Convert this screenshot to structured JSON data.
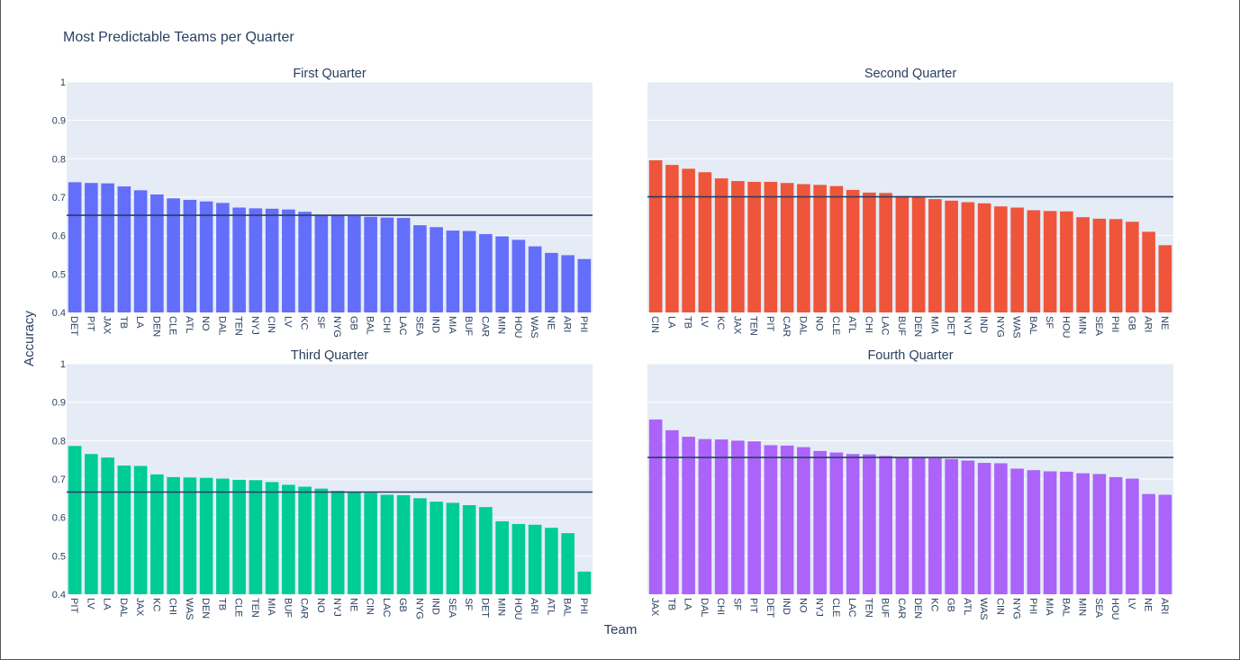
{
  "figure": {
    "title": "Most Predictable Teams per Quarter",
    "xlabel": "Team",
    "ylabel": "Accuracy"
  },
  "chart_data": [
    {
      "type": "bar",
      "title": "First Quarter",
      "color": "#636efa",
      "ylim": [
        0.4,
        1
      ],
      "yticks": [
        "0.4",
        "0.5",
        "0.6",
        "0.7",
        "0.8",
        "0.9",
        "1"
      ],
      "categories": [
        "DET",
        "PIT",
        "JAX",
        "TB",
        "LA",
        "DEN",
        "CLE",
        "ATL",
        "NO",
        "DAL",
        "TEN",
        "NYJ",
        "CIN",
        "LV",
        "KC",
        "SF",
        "NYG",
        "GB",
        "BAL",
        "CHI",
        "LAC",
        "SEA",
        "IND",
        "MIA",
        "BUF",
        "CAR",
        "MIN",
        "HOU",
        "WAS",
        "NE",
        "ARI",
        "PHI"
      ],
      "values": [
        0.739,
        0.737,
        0.736,
        0.728,
        0.718,
        0.707,
        0.697,
        0.693,
        0.689,
        0.685,
        0.673,
        0.671,
        0.67,
        0.668,
        0.662,
        0.653,
        0.652,
        0.651,
        0.649,
        0.647,
        0.646,
        0.627,
        0.622,
        0.613,
        0.612,
        0.604,
        0.598,
        0.589,
        0.572,
        0.555,
        0.549,
        0.539
      ],
      "reference_line": 0.653
    },
    {
      "type": "bar",
      "title": "Second Quarter",
      "color": "#ef553b",
      "ylim": [
        0.4,
        1
      ],
      "categories": [
        "CIN",
        "LA",
        "TB",
        "LV",
        "KC",
        "JAX",
        "TEN",
        "PIT",
        "CAR",
        "DAL",
        "NO",
        "CLE",
        "ATL",
        "CHI",
        "LAC",
        "BUF",
        "DEN",
        "MIA",
        "DET",
        "NYJ",
        "IND",
        "NYG",
        "WAS",
        "BAL",
        "SF",
        "HOU",
        "MIN",
        "SEA",
        "PHI",
        "GB",
        "ARI",
        "NE"
      ],
      "values": [
        0.796,
        0.784,
        0.774,
        0.765,
        0.749,
        0.742,
        0.74,
        0.74,
        0.737,
        0.734,
        0.732,
        0.729,
        0.719,
        0.712,
        0.711,
        0.703,
        0.701,
        0.695,
        0.691,
        0.687,
        0.684,
        0.676,
        0.673,
        0.666,
        0.664,
        0.663,
        0.648,
        0.644,
        0.643,
        0.636,
        0.61,
        0.575
      ],
      "reference_line": 0.701
    },
    {
      "type": "bar",
      "title": "Third Quarter",
      "color": "#00cc96",
      "ylim": [
        0.4,
        1
      ],
      "yticks": [
        "0.4",
        "0.5",
        "0.6",
        "0.7",
        "0.8",
        "0.9",
        "1"
      ],
      "categories": [
        "PIT",
        "LV",
        "LA",
        "DAL",
        "JAX",
        "KC",
        "CHI",
        "WAS",
        "DEN",
        "TB",
        "CLE",
        "TEN",
        "MIA",
        "BUF",
        "CAR",
        "NO",
        "NYJ",
        "NE",
        "CIN",
        "LAC",
        "GB",
        "NYG",
        "IND",
        "SEA",
        "SF",
        "DET",
        "MIN",
        "HOU",
        "ARI",
        "ATL",
        "BAL",
        "PHI"
      ],
      "values": [
        0.786,
        0.765,
        0.756,
        0.735,
        0.734,
        0.712,
        0.705,
        0.704,
        0.703,
        0.701,
        0.698,
        0.697,
        0.692,
        0.685,
        0.68,
        0.675,
        0.669,
        0.666,
        0.664,
        0.659,
        0.658,
        0.65,
        0.641,
        0.638,
        0.632,
        0.627,
        0.59,
        0.583,
        0.581,
        0.573,
        0.559,
        0.459
      ],
      "reference_line": 0.666
    },
    {
      "type": "bar",
      "title": "Fourth Quarter",
      "color": "#ab63fa",
      "ylim": [
        0.4,
        1
      ],
      "categories": [
        "JAX",
        "TB",
        "LA",
        "DAL",
        "CHI",
        "SF",
        "PIT",
        "DET",
        "IND",
        "NO",
        "NYJ",
        "CLE",
        "LAC",
        "TEN",
        "BUF",
        "CAR",
        "DEN",
        "KC",
        "GB",
        "ATL",
        "WAS",
        "CIN",
        "NYG",
        "PHI",
        "MIA",
        "BAL",
        "MIN",
        "SEA",
        "HOU",
        "LV",
        "NE",
        "ARI"
      ],
      "values": [
        0.855,
        0.827,
        0.81,
        0.804,
        0.803,
        0.8,
        0.798,
        0.788,
        0.787,
        0.783,
        0.773,
        0.769,
        0.765,
        0.764,
        0.76,
        0.757,
        0.755,
        0.754,
        0.752,
        0.748,
        0.742,
        0.741,
        0.727,
        0.723,
        0.72,
        0.719,
        0.715,
        0.713,
        0.705,
        0.701,
        0.661,
        0.659
      ],
      "reference_line": 0.756
    }
  ]
}
